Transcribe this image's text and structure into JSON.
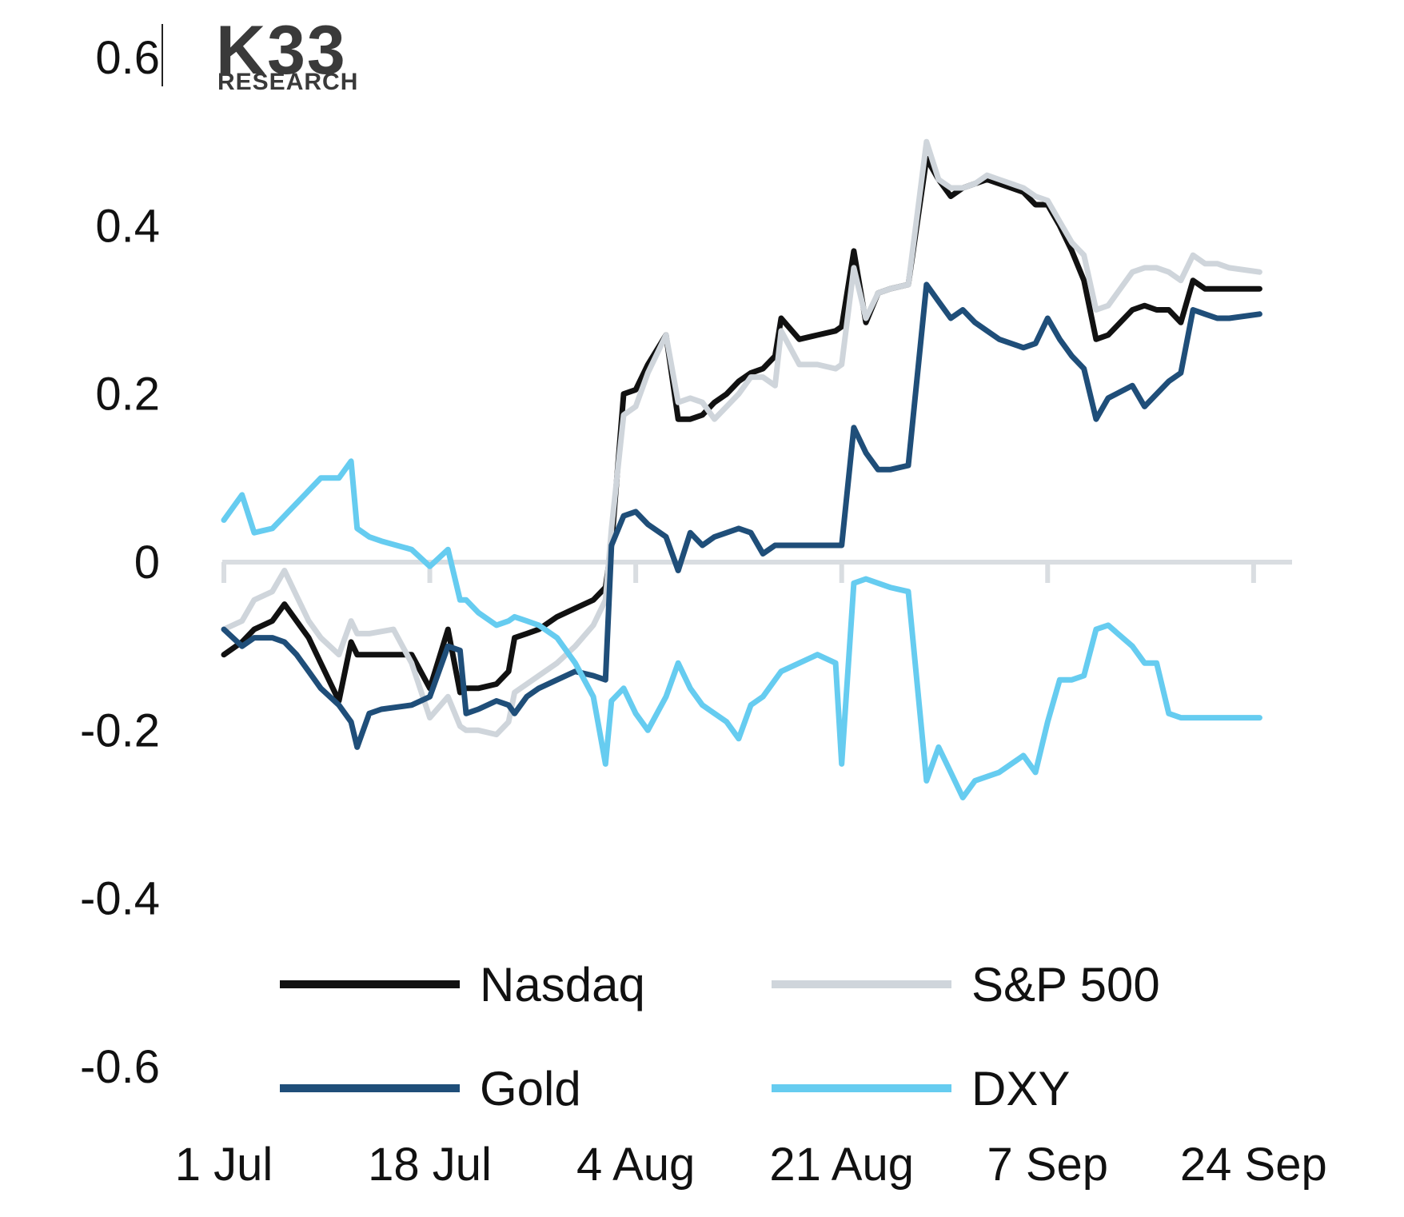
{
  "logo": {
    "main": "K33",
    "sub": "RESEARCH"
  },
  "chart_data": {
    "type": "line",
    "title": "",
    "xlabel": "",
    "ylabel": "",
    "ylim": [
      -0.6,
      0.6
    ],
    "yticks": [
      "0.6",
      "0.4",
      "0.2",
      "0",
      "-0.2",
      "-0.4",
      "-0.6"
    ],
    "ytick_values": [
      0.6,
      0.4,
      0.2,
      0,
      -0.2,
      -0.4,
      -0.6
    ],
    "xlim": [
      0,
      86
    ],
    "xticks": [
      "1 Jul",
      "18 Jul",
      "4 Aug",
      "21 Aug",
      "7 Sep",
      "24 Sep"
    ],
    "xtick_values": [
      0,
      17,
      34,
      51,
      68,
      85
    ],
    "grid": false,
    "legend_position": "bottom",
    "series": [
      {
        "name": "Nasdaq",
        "color": "#111111",
        "x": [
          0,
          1.5,
          2.5,
          4,
          5,
          6,
          7,
          8,
          9.5,
          10.5,
          11,
          12,
          13,
          15.5,
          17,
          18.5,
          19.5,
          20,
          21,
          22.5,
          23.5,
          24,
          25,
          26,
          27.5,
          29,
          30.5,
          31.5,
          32,
          33,
          34,
          35,
          36.5,
          37.5,
          38.5,
          39.5,
          40.5,
          41.5,
          42.5,
          43.5,
          44.5,
          45.5,
          46,
          47.5,
          49,
          50.5,
          51,
          52,
          53,
          54,
          55,
          56.5,
          58,
          59,
          60,
          61,
          62,
          63,
          64,
          66,
          67,
          68,
          69,
          70,
          71,
          72,
          73,
          75,
          76,
          77,
          78,
          79,
          80,
          81,
          82,
          83,
          85.5
        ],
        "values": [
          -0.11,
          -0.095,
          -0.08,
          -0.07,
          -0.05,
          -0.07,
          -0.09,
          -0.12,
          -0.165,
          -0.095,
          -0.11,
          -0.11,
          -0.11,
          -0.11,
          -0.15,
          -0.08,
          -0.155,
          -0.15,
          -0.15,
          -0.145,
          -0.13,
          -0.09,
          -0.085,
          -0.08,
          -0.065,
          -0.055,
          -0.045,
          -0.03,
          0.02,
          0.2,
          0.205,
          0.235,
          0.27,
          0.17,
          0.17,
          0.175,
          0.19,
          0.2,
          0.215,
          0.225,
          0.23,
          0.245,
          0.29,
          0.265,
          0.27,
          0.275,
          0.28,
          0.37,
          0.285,
          0.32,
          0.325,
          0.33,
          0.48,
          0.455,
          0.435,
          0.445,
          0.45,
          0.455,
          0.45,
          0.44,
          0.425,
          0.425,
          0.4,
          0.37,
          0.335,
          0.265,
          0.27,
          0.3,
          0.305,
          0.3,
          0.3,
          0.285,
          0.335,
          0.325,
          0.325,
          0.325,
          0.325
        ]
      },
      {
        "name": "S&P 500",
        "color": "#cfd5db",
        "x": [
          0,
          1.5,
          2.5,
          4,
          5,
          6,
          7,
          8,
          9.5,
          10.5,
          11,
          12,
          14,
          15.5,
          17,
          18.5,
          19.5,
          20,
          21,
          22.5,
          23.5,
          24,
          25,
          26,
          27.5,
          29,
          30.5,
          31.5,
          32,
          33,
          34,
          35,
          36.5,
          37.5,
          38.5,
          39.5,
          40.5,
          41.5,
          42.5,
          43.5,
          44.5,
          45.5,
          46,
          47.5,
          49,
          50.5,
          51,
          52,
          53,
          54,
          55,
          56.5,
          58,
          59,
          60,
          61,
          62,
          63,
          64,
          66,
          67,
          68,
          69,
          70,
          71,
          72,
          73,
          75,
          76,
          77,
          78,
          79,
          80,
          81,
          82,
          83,
          85.5
        ],
        "values": [
          -0.08,
          -0.07,
          -0.045,
          -0.035,
          -0.01,
          -0.04,
          -0.07,
          -0.09,
          -0.11,
          -0.07,
          -0.085,
          -0.085,
          -0.08,
          -0.12,
          -0.185,
          -0.16,
          -0.195,
          -0.2,
          -0.2,
          -0.205,
          -0.19,
          -0.155,
          -0.145,
          -0.135,
          -0.12,
          -0.1,
          -0.075,
          -0.045,
          0.04,
          0.175,
          0.185,
          0.225,
          0.27,
          0.19,
          0.195,
          0.19,
          0.17,
          0.185,
          0.2,
          0.22,
          0.22,
          0.21,
          0.275,
          0.235,
          0.235,
          0.23,
          0.235,
          0.35,
          0.29,
          0.32,
          0.325,
          0.33,
          0.5,
          0.455,
          0.445,
          0.445,
          0.45,
          0.46,
          0.455,
          0.445,
          0.435,
          0.43,
          0.405,
          0.38,
          0.365,
          0.3,
          0.305,
          0.345,
          0.35,
          0.35,
          0.345,
          0.335,
          0.365,
          0.355,
          0.355,
          0.35,
          0.345
        ]
      },
      {
        "name": "Gold",
        "color": "#1f4e79",
        "x": [
          0,
          1.5,
          2.5,
          4,
          5,
          6,
          7,
          8,
          9.5,
          10.5,
          11,
          12,
          13,
          15.5,
          17,
          18.5,
          19.5,
          20,
          21,
          22.5,
          23.5,
          24,
          25,
          26,
          27.5,
          29,
          30.5,
          31.5,
          32,
          33,
          34,
          35,
          36.5,
          37.5,
          38.5,
          39.5,
          40.5,
          41.5,
          42.5,
          43.5,
          44.5,
          45.5,
          46,
          47.5,
          49,
          50.5,
          51,
          52,
          53,
          54,
          55,
          56.5,
          58,
          59,
          60,
          61,
          62,
          63,
          64,
          66,
          67,
          68,
          69,
          70,
          71,
          72,
          73,
          75,
          76,
          77,
          78,
          79,
          80,
          81,
          82,
          83,
          85.5
        ],
        "values": [
          -0.08,
          -0.1,
          -0.09,
          -0.09,
          -0.095,
          -0.11,
          -0.13,
          -0.15,
          -0.17,
          -0.19,
          -0.22,
          -0.18,
          -0.175,
          -0.17,
          -0.16,
          -0.1,
          -0.105,
          -0.18,
          -0.175,
          -0.165,
          -0.17,
          -0.18,
          -0.16,
          -0.15,
          -0.14,
          -0.13,
          -0.135,
          -0.14,
          0.02,
          0.055,
          0.06,
          0.045,
          0.03,
          -0.01,
          0.035,
          0.02,
          0.03,
          0.035,
          0.04,
          0.035,
          0.01,
          0.02,
          0.02,
          0.02,
          0.02,
          0.02,
          0.02,
          0.16,
          0.13,
          0.11,
          0.11,
          0.115,
          0.33,
          0.31,
          0.29,
          0.3,
          0.285,
          0.275,
          0.265,
          0.255,
          0.26,
          0.29,
          0.265,
          0.245,
          0.23,
          0.17,
          0.195,
          0.21,
          0.185,
          0.2,
          0.215,
          0.225,
          0.3,
          0.295,
          0.29,
          0.29,
          0.295
        ]
      },
      {
        "name": "DXY",
        "color": "#66ccf0",
        "x": [
          0,
          1.5,
          2.5,
          4,
          5,
          6,
          7,
          8,
          9.5,
          10.5,
          11,
          12,
          13,
          15.5,
          17,
          18.5,
          19.5,
          20,
          21,
          22.5,
          23.5,
          24,
          25,
          26,
          27.5,
          29,
          30.5,
          31.5,
          32,
          33,
          34,
          35,
          36.5,
          37.5,
          38.5,
          39.5,
          40.5,
          41.5,
          42.5,
          43.5,
          44.5,
          45.5,
          46,
          47.5,
          49,
          50.5,
          51,
          52,
          53,
          54,
          55,
          56.5,
          58,
          59,
          60,
          61,
          62,
          63,
          64,
          66,
          67,
          68,
          69,
          70,
          71,
          72,
          73,
          75,
          76,
          77,
          78,
          79,
          80,
          81,
          82,
          83,
          85.5
        ],
        "values": [
          0.05,
          0.08,
          0.035,
          0.04,
          0.055,
          0.07,
          0.085,
          0.1,
          0.1,
          0.12,
          0.04,
          0.03,
          0.025,
          0.015,
          -0.005,
          0.015,
          -0.045,
          -0.045,
          -0.06,
          -0.075,
          -0.07,
          -0.065,
          -0.07,
          -0.075,
          -0.09,
          -0.12,
          -0.16,
          -0.24,
          -0.165,
          -0.15,
          -0.18,
          -0.2,
          -0.16,
          -0.12,
          -0.15,
          -0.17,
          -0.18,
          -0.19,
          -0.21,
          -0.17,
          -0.16,
          -0.14,
          -0.13,
          -0.12,
          -0.11,
          -0.12,
          -0.24,
          -0.025,
          -0.02,
          -0.025,
          -0.03,
          -0.035,
          -0.26,
          -0.22,
          -0.25,
          -0.28,
          -0.26,
          -0.255,
          -0.25,
          -0.23,
          -0.25,
          -0.19,
          -0.14,
          -0.14,
          -0.135,
          -0.08,
          -0.075,
          -0.1,
          -0.12,
          -0.12,
          -0.18,
          -0.185,
          -0.185,
          -0.185,
          -0.185,
          -0.185,
          -0.185
        ]
      }
    ]
  }
}
